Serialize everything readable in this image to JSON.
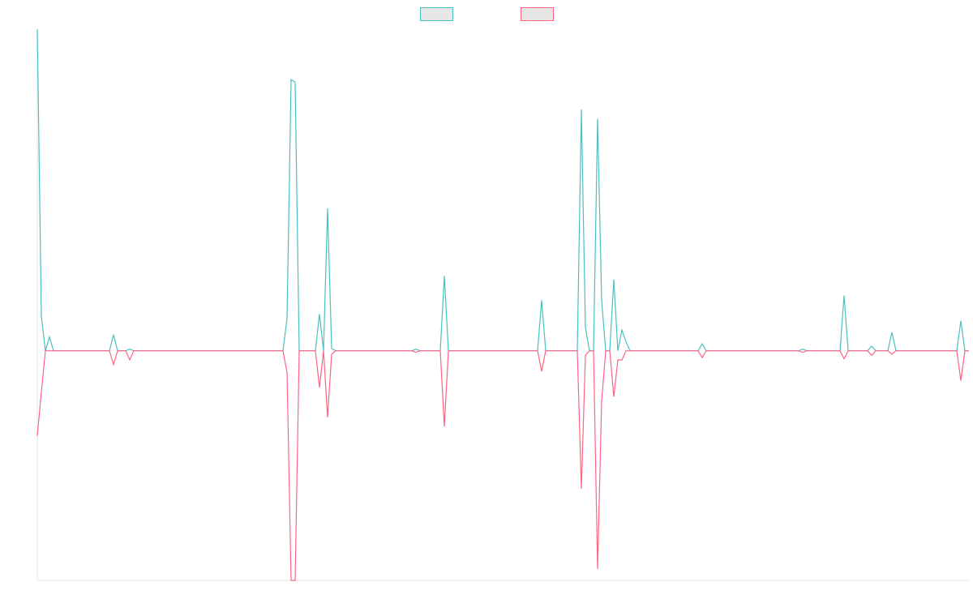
{
  "chart_data": {
    "type": "line",
    "x": [
      0,
      1,
      2,
      3,
      4,
      17.8,
      18.8,
      19.8,
      21.8,
      22.8,
      23.8,
      60.6,
      61.6,
      62.6,
      63.6,
      64.6,
      68.6,
      69.6,
      70.6,
      71.6,
      72.6,
      73.6,
      92.4,
      93.4,
      94.4,
      99.4,
      100.4,
      101.4,
      123.4,
      124.4,
      125.4,
      133.2,
      134.2,
      135.2,
      136.2,
      137.2,
      138.2,
      139.2,
      140.2,
      141.2,
      142.2,
      143.2,
      144.2,
      145.2,
      146.2,
      163,
      164,
      165,
      187.8,
      188.8,
      189.8,
      198,
      199,
      200,
      204.8,
      205.8,
      206.8,
      209.8,
      210.8,
      211.8,
      226.8,
      227.8,
      228.8,
      229.8
    ],
    "series": [
      {
        "color": "#4bc0c0",
        "values": [
          140,
          15,
          0,
          6,
          0,
          0,
          7,
          0,
          0,
          0.7,
          0,
          0,
          14,
          118,
          117,
          0,
          0,
          16,
          0,
          62,
          1,
          0,
          0,
          0.7,
          0,
          0,
          32.5,
          0,
          0,
          22,
          0,
          0,
          105,
          10,
          0,
          0,
          101,
          22,
          0,
          0,
          31,
          0,
          9,
          4,
          0,
          0,
          3,
          0,
          0,
          0.7,
          0,
          0,
          24,
          0,
          0,
          2,
          0,
          0,
          8,
          0,
          0,
          13,
          0,
          0
        ]
      },
      {
        "color": "#ff6384",
        "values": [
          -37,
          -18,
          0,
          0,
          0,
          0,
          -6,
          0,
          0,
          -4,
          0,
          0,
          -9.5,
          -100,
          -100,
          0,
          0,
          -16,
          0,
          -29,
          -1.5,
          0,
          0,
          -0.7,
          0,
          0,
          -33,
          0,
          0,
          -9,
          0,
          0,
          -60,
          -2,
          0,
          0,
          -95,
          -22,
          0,
          0,
          -20,
          -4,
          -4,
          0,
          0,
          0,
          -3,
          0,
          0,
          -0.7,
          0,
          0,
          -3.5,
          0,
          0,
          -2,
          0,
          0,
          -1.5,
          0,
          0,
          -13,
          0,
          0
        ]
      }
    ],
    "xlim": [
      0,
      229.8
    ],
    "ylim": [
      -100,
      140
    ],
    "legend": "top",
    "grid": false
  }
}
